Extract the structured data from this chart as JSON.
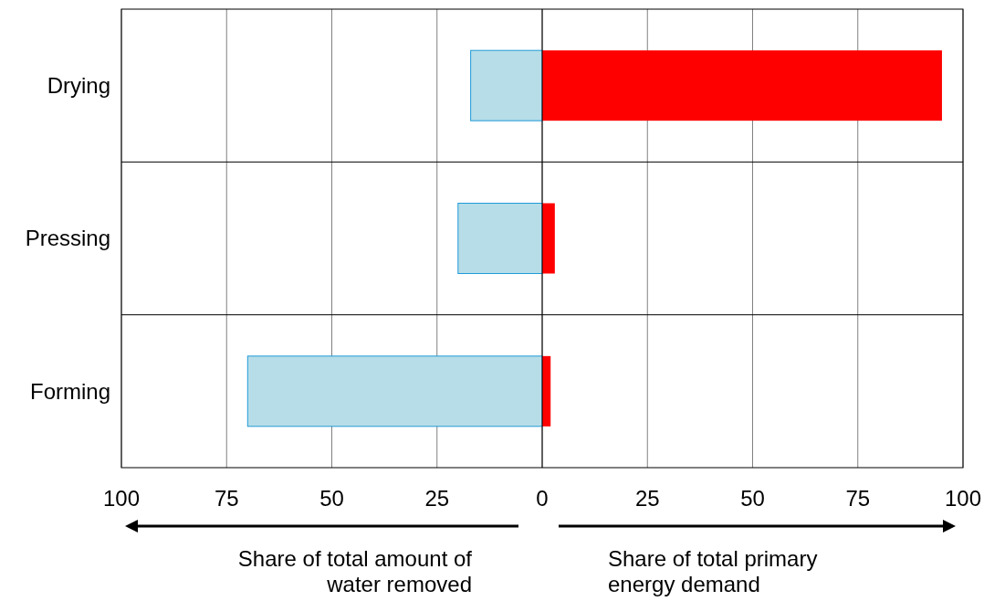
{
  "chart_data": {
    "type": "bar",
    "orientation": "horizontal",
    "stacked": true,
    "categories": [
      "Drying",
      "Pressing",
      "Forming"
    ],
    "series": [
      {
        "color": "#b7dde8",
        "values": [
          -17,
          -20,
          -70
        ]
      },
      {
        "color": "#ff0000",
        "values": [
          95,
          3,
          2
        ]
      }
    ],
    "xlim": [
      -100,
      100
    ],
    "xticks": [
      {
        "value": -100,
        "label": "100"
      },
      {
        "value": -75,
        "label": "75"
      },
      {
        "value": -50,
        "label": "50"
      },
      {
        "value": -25,
        "label": "25"
      },
      0,
      25,
      50,
      75,
      100
    ],
    "grid": true,
    "annotations": [
      "Share of total amount of water removed",
      "Share of total primary energy demand"
    ]
  }
}
